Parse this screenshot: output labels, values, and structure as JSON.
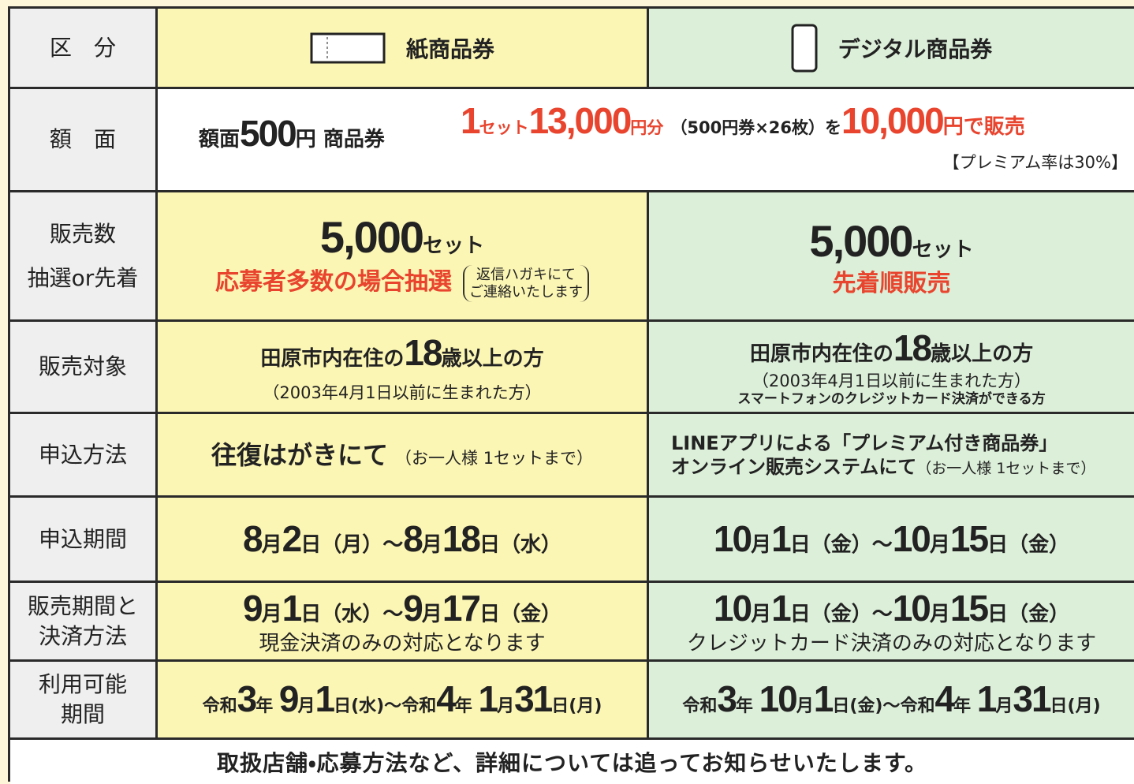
{
  "table": {
    "header": {
      "label": "区　分",
      "paper": "紙商品券",
      "digital": "デジタル商品券"
    },
    "rows": [
      {
        "label": [
          "額　面"
        ],
        "both": [
          "額面",
          "500",
          "円",
          "商品券",
          "1",
          "セット",
          "13,000",
          "円分",
          "（500円券×26枚）を",
          "10,000",
          "円で販売",
          "【プレミアム率は30%】"
        ]
      },
      {
        "label": [
          "販売数",
          "抽選or先着"
        ],
        "paper": [
          "5,000",
          "セット",
          "応募者多数の場合抽選",
          "返信ハガキにて",
          "ご連絡いたします"
        ],
        "digital": [
          "5,000",
          "セット",
          "先着順販売"
        ]
      },
      {
        "label": [
          "販売対象"
        ],
        "paper": [
          "田原市内在住の",
          "18",
          "歳以上の方",
          "（2003年4月1日以前に生まれた方）"
        ],
        "digital": [
          "田原市内在住の",
          "18",
          "歳以上の方",
          "（2003年4月1日以前に生まれた方）",
          "スマートフォンのクレジットカード決済ができる方"
        ]
      },
      {
        "label": [
          "申込方法"
        ],
        "paper": [
          "往復はがきにて",
          "（お一人様 1セットまで）"
        ],
        "digital": [
          "LINEアプリによる「プレミアム付き商品券」",
          "オンライン販売システムにて",
          "（お一人様 1セットまで）"
        ]
      },
      {
        "label": [
          "申込期間"
        ],
        "paper": [
          "8",
          "月",
          "2",
          "日（月）～",
          "8",
          "月",
          "18",
          "日（水）"
        ],
        "digital": [
          "10",
          "月",
          "1",
          "日（金）～",
          "10",
          "月",
          "15",
          "日（金）"
        ]
      },
      {
        "label": [
          "販売期間と",
          "決済方法"
        ],
        "paper": [
          "9",
          "月",
          "1",
          "日（水）～",
          "9",
          "月",
          "17",
          "日（金）",
          "現金決済のみの対応となります"
        ],
        "digital": [
          "10",
          "月",
          "1",
          "日（金）～",
          "10",
          "月",
          "15",
          "日（金）",
          "クレジットカード決済のみの対応となります"
        ]
      },
      {
        "label": [
          "利用可能",
          "期間"
        ],
        "paper": [
          "令和",
          "3",
          "年 ",
          "9",
          "月",
          "1",
          "日(水)～令和",
          "4",
          "年 ",
          "1",
          "月",
          "31",
          "日(月)"
        ],
        "digital": [
          "令和",
          "3",
          "年 ",
          "10",
          "月",
          "1",
          "日(金)～令和",
          "4",
          "年 ",
          "1",
          "月",
          "31",
          "日(月)"
        ]
      }
    ]
  },
  "footer": "取扱店舗・応募方法など、詳細については追ってお知らせいたします。"
}
